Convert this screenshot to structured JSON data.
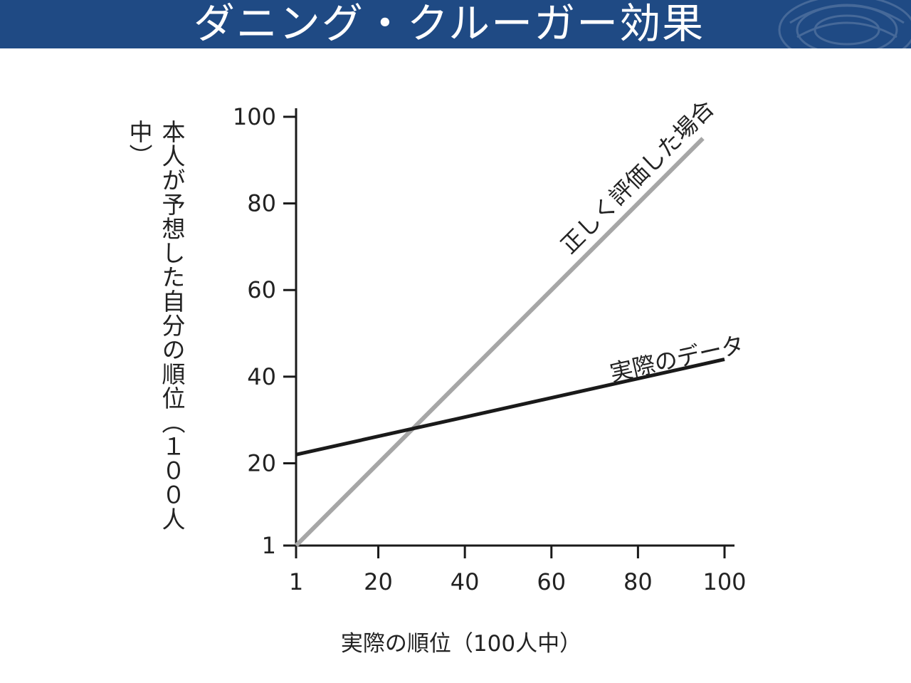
{
  "header": {
    "title": "ダニング・クルーガー効果",
    "background_color": "#1f4a84",
    "emblem_icon": "crest-emblem-icon"
  },
  "chart_data": {
    "type": "line",
    "xlabel": "実際の順位（100人中）",
    "ylabel": "本人が予想した自分の順位（１００人中）",
    "xlim": [
      1,
      100
    ],
    "ylim": [
      1,
      100
    ],
    "x_ticks": [
      1,
      20,
      40,
      60,
      80,
      100
    ],
    "y_ticks": [
      1,
      20,
      40,
      60,
      80,
      100
    ],
    "grid": false,
    "series": [
      {
        "name": "正しく評価した場合",
        "color": "#a6a6a6",
        "x": [
          1,
          95
        ],
        "y": [
          1,
          95
        ]
      },
      {
        "name": "実際のデータ",
        "color": "#1a1a1a",
        "x": [
          1,
          100
        ],
        "y": [
          22,
          44
        ]
      }
    ]
  }
}
